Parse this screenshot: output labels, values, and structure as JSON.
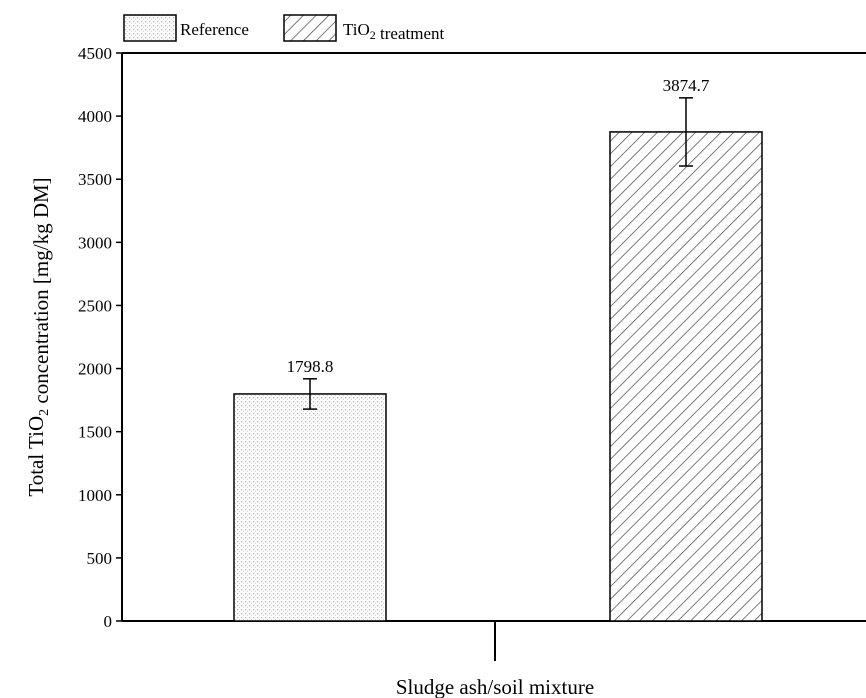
{
  "chart_data": {
    "type": "bar",
    "categories": [
      "Sludge ash/soil mixture"
    ],
    "series": [
      {
        "name": "Reference",
        "values": [
          1798.8
        ],
        "error": [
          120
        ],
        "pattern": "dots"
      },
      {
        "name": "TiO₂ treatment",
        "values": [
          3874.7
        ],
        "error": [
          270
        ],
        "pattern": "hatch"
      }
    ],
    "data_labels": [
      "1798.8",
      "3874.7"
    ],
    "xlabel": "Sludge ash/soil mixture",
    "ylabel": "Total TiO₂ concentration [mg/kg DM]",
    "ylim": [
      0,
      4500
    ],
    "yticks": [
      0,
      500,
      1000,
      1500,
      2000,
      2500,
      3000,
      3500,
      4000,
      4500
    ],
    "grid": false,
    "legend_position": "top-left"
  }
}
